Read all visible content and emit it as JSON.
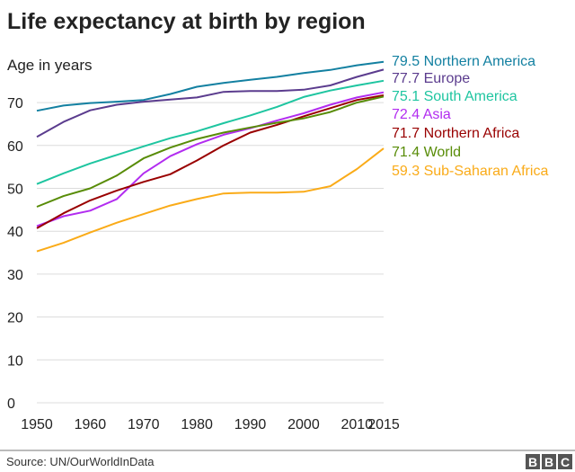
{
  "chart_data": {
    "type": "line",
    "title": "Life expectancy at birth by region",
    "ylabel": "Age in years",
    "xlabel": "",
    "xlim": [
      1950,
      2015
    ],
    "ylim": [
      0,
      80
    ],
    "grid": true,
    "legend": "right (direct labels at line ends)",
    "x_ticks": [
      "1950",
      "1960",
      "1970",
      "1980",
      "1990",
      "2000",
      "2010",
      "2015"
    ],
    "y_ticks": [
      "0",
      "10",
      "20",
      "30",
      "40",
      "50",
      "60",
      "70"
    ],
    "x": [
      1950,
      1955,
      1960,
      1965,
      1970,
      1975,
      1980,
      1985,
      1990,
      1995,
      2000,
      2005,
      2010,
      2015
    ],
    "series": [
      {
        "name": "Northern America",
        "end_label": "79.5",
        "color": "#1380A1",
        "values": [
          68.1,
          69.3,
          69.9,
          70.2,
          70.6,
          72.0,
          73.7,
          74.6,
          75.3,
          76.0,
          76.9,
          77.6,
          78.7,
          79.5
        ]
      },
      {
        "name": "Europe",
        "end_label": "77.7",
        "color": "#5B3C8E",
        "values": [
          62.0,
          65.5,
          68.2,
          69.5,
          70.2,
          70.7,
          71.2,
          72.5,
          72.7,
          72.7,
          73.0,
          74.0,
          76.0,
          77.7
        ]
      },
      {
        "name": "South America",
        "end_label": "75.1",
        "color": "#1EC5A0",
        "values": [
          51.0,
          53.5,
          55.8,
          57.8,
          59.8,
          61.7,
          63.3,
          65.2,
          67.0,
          69.0,
          71.3,
          72.8,
          74.0,
          75.1
        ]
      },
      {
        "name": "Asia",
        "end_label": "72.4",
        "color": "#B22CF0",
        "values": [
          41.2,
          43.5,
          44.8,
          47.5,
          53.5,
          57.5,
          60.3,
          62.5,
          64.0,
          65.8,
          67.5,
          69.5,
          71.2,
          72.4
        ]
      },
      {
        "name": "Northern Africa",
        "end_label": "71.7",
        "color": "#990000",
        "values": [
          40.7,
          44.2,
          47.2,
          49.5,
          51.5,
          53.3,
          56.5,
          60.0,
          63.0,
          64.8,
          66.8,
          68.7,
          70.6,
          71.7
        ]
      },
      {
        "name": "World",
        "end_label": "71.4",
        "color": "#588C07",
        "values": [
          45.7,
          48.2,
          50.0,
          53.0,
          57.0,
          59.5,
          61.5,
          63.0,
          64.2,
          65.3,
          66.3,
          67.8,
          70.0,
          71.4
        ]
      },
      {
        "name": "Sub-Saharan Africa",
        "end_label": "59.3",
        "color": "#FAAB18",
        "values": [
          35.3,
          37.3,
          39.7,
          42.0,
          44.0,
          46.0,
          47.5,
          48.8,
          49.0,
          49.0,
          49.2,
          50.5,
          54.5,
          59.3
        ]
      }
    ]
  },
  "footer": {
    "source": "Source: UN/OurWorldInData",
    "logo": "BBC"
  }
}
